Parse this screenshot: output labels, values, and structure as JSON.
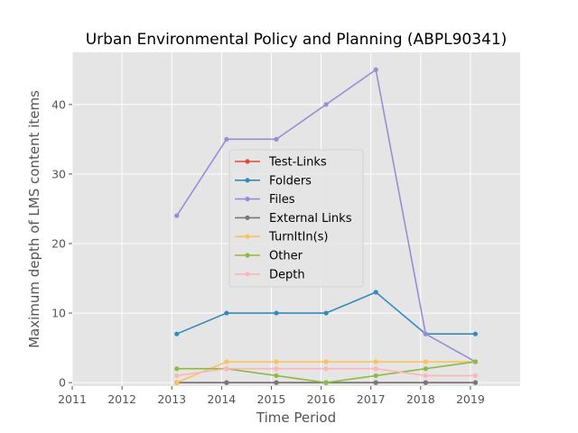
{
  "chart_data": {
    "type": "line",
    "title": "Urban Environmental Policy and Planning (ABPL90341)",
    "xlabel": "Time Period",
    "ylabel": "Maximum depth of LMS content items",
    "xlim": [
      2011,
      2020
    ],
    "ylim": [
      -0.5,
      47.5
    ],
    "x_ticks": [
      "2011",
      "2012",
      "2013",
      "2014",
      "2015",
      "2016",
      "2017",
      "2018",
      "2019"
    ],
    "y_ticks": [
      "0",
      "10",
      "20",
      "30",
      "40"
    ],
    "grid": true,
    "legend_position": "center",
    "x": [
      2013.1,
      2014.1,
      2015.1,
      2016.1,
      2017.1,
      2018.1,
      2019.1
    ],
    "series": [
      {
        "name": "Test-Links",
        "color": "#e24a33",
        "values": [
          0,
          0,
          0,
          0,
          0,
          0,
          0
        ]
      },
      {
        "name": "Folders",
        "color": "#348abd",
        "values": [
          7,
          10,
          10,
          10,
          13,
          7,
          7
        ]
      },
      {
        "name": "Files",
        "color": "#988ed5",
        "values": [
          24,
          35,
          35,
          40,
          45,
          7,
          3
        ]
      },
      {
        "name": "External Links",
        "color": "#777777",
        "values": [
          0,
          0,
          0,
          0,
          0,
          0,
          0
        ]
      },
      {
        "name": "TurnItIn(s)",
        "color": "#fbc15e",
        "values": [
          0,
          3,
          3,
          3,
          3,
          3,
          3
        ]
      },
      {
        "name": "Other",
        "color": "#8eba42",
        "values": [
          2,
          2,
          1,
          0,
          1,
          2,
          3
        ]
      },
      {
        "name": "Depth",
        "color": "#ffb5b8",
        "values": [
          1,
          2,
          2,
          2,
          2,
          1,
          1
        ]
      }
    ]
  }
}
